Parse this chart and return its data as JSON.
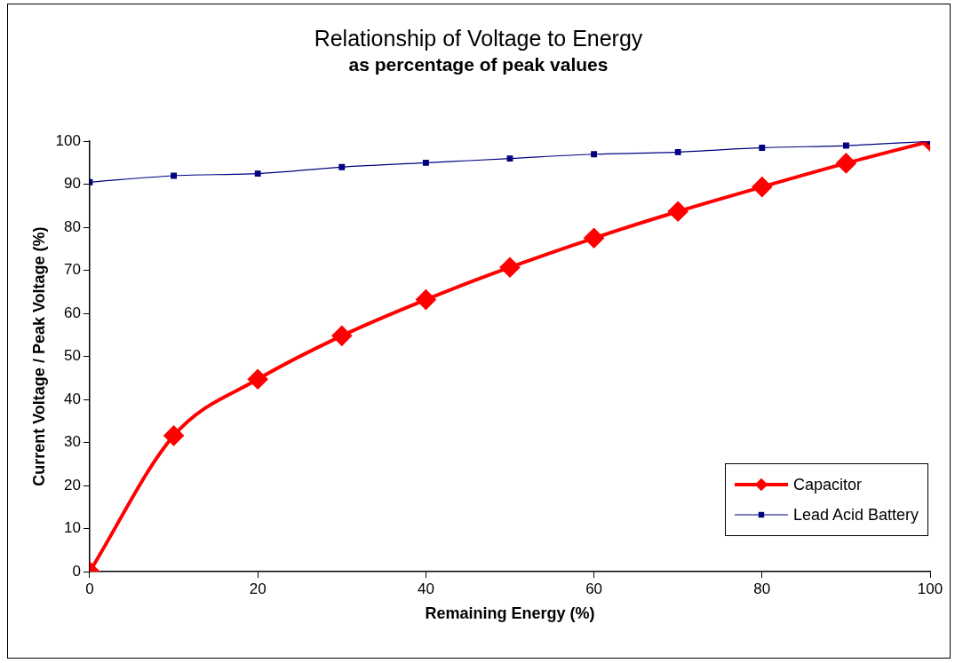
{
  "chart_data": {
    "type": "line",
    "title": "Relationship of Voltage to Energy",
    "subtitle": "as percentage of peak values",
    "xlabel": "Remaining Energy (%)",
    "ylabel": "Current Voltage / Peak Voltage (%)",
    "x": [
      0,
      10,
      20,
      30,
      40,
      50,
      60,
      70,
      80,
      90,
      100
    ],
    "series": [
      {
        "name": "Capacitor",
        "color": "#ff0000",
        "marker": "diamond",
        "values": [
          0,
          31.6,
          44.7,
          54.8,
          63.2,
          70.7,
          77.5,
          83.7,
          89.4,
          94.9,
          100
        ]
      },
      {
        "name": "Lead Acid Battery",
        "color": "#000080",
        "marker": "square",
        "values": [
          90.5,
          92,
          92.5,
          94,
          95,
          96,
          97,
          97.5,
          98.5,
          99,
          100
        ]
      }
    ],
    "xlim": [
      0,
      100
    ],
    "xticks": [
      0,
      20,
      40,
      60,
      80,
      100
    ],
    "ylim": [
      0,
      100
    ],
    "yticks": [
      0,
      10,
      20,
      30,
      40,
      50,
      60,
      70,
      80,
      90,
      100
    ],
    "grid": false,
    "legend": "bottom right"
  }
}
